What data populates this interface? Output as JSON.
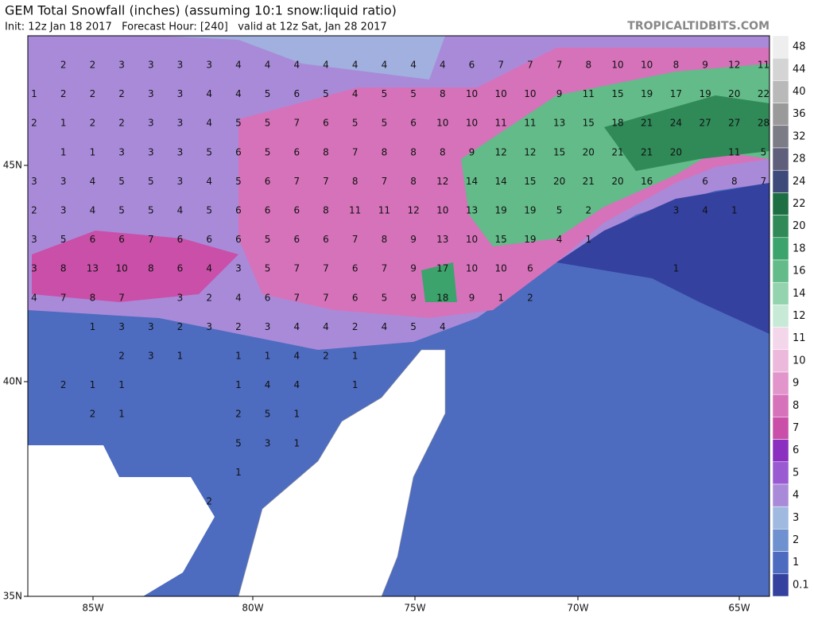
{
  "header": {
    "title": "GEM Total Snowfall (inches) (assuming 10:1 snow:liquid ratio)",
    "subtitle": "Init: 12z Jan 18 2017   Forecast Hour: [240]   valid at 12z Sat, Jan 28 2017",
    "watermark": "TROPICALTIDBITS.COM"
  },
  "map": {
    "labels": [
      [
        null,
        2,
        2,
        3,
        3,
        3,
        3,
        4,
        4,
        4,
        4,
        4,
        4,
        4,
        4,
        6,
        7,
        7,
        7,
        8,
        10,
        10,
        8,
        9,
        12,
        11
      ],
      [
        1,
        2,
        2,
        2,
        3,
        3,
        4,
        4,
        5,
        6,
        5,
        4,
        5,
        5,
        8,
        10,
        10,
        10,
        9,
        11,
        15,
        19,
        17,
        19,
        20,
        22
      ],
      [
        2,
        1,
        2,
        2,
        3,
        3,
        4,
        5,
        5,
        7,
        6,
        5,
        5,
        6,
        10,
        10,
        11,
        11,
        13,
        15,
        18,
        21,
        24,
        27,
        27,
        28
      ],
      [
        null,
        1,
        1,
        3,
        3,
        3,
        5,
        6,
        5,
        6,
        8,
        7,
        8,
        8,
        8,
        9,
        12,
        12,
        15,
        20,
        21,
        21,
        20,
        null,
        11,
        5
      ],
      [
        3,
        3,
        4,
        5,
        5,
        3,
        4,
        5,
        6,
        7,
        7,
        8,
        7,
        8,
        12,
        14,
        14,
        15,
        20,
        21,
        20,
        16,
        null,
        6,
        8,
        7
      ],
      [
        2,
        3,
        4,
        5,
        5,
        4,
        5,
        6,
        6,
        6,
        8,
        11,
        11,
        12,
        10,
        13,
        19,
        19,
        5,
        2,
        null,
        null,
        3,
        4,
        1,
        null
      ],
      [
        3,
        5,
        6,
        6,
        7,
        6,
        6,
        6,
        5,
        6,
        6,
        7,
        8,
        9,
        13,
        10,
        15,
        19,
        4,
        1,
        null,
        null,
        null,
        null,
        null,
        null
      ],
      [
        3,
        8,
        13,
        10,
        8,
        6,
        4,
        3,
        5,
        7,
        7,
        6,
        7,
        9,
        17,
        10,
        10,
        6,
        null,
        null,
        null,
        null,
        1,
        null,
        null,
        null
      ],
      [
        4,
        7,
        8,
        7,
        null,
        3,
        2,
        4,
        6,
        7,
        7,
        6,
        5,
        9,
        18,
        9,
        1,
        2,
        null,
        null,
        null,
        null,
        null,
        null,
        null,
        null
      ],
      [
        null,
        null,
        1,
        3,
        3,
        2,
        3,
        2,
        3,
        4,
        4,
        2,
        4,
        5,
        4,
        null,
        null,
        null,
        null,
        null,
        null,
        null,
        null,
        null,
        null,
        null
      ],
      [
        null,
        null,
        null,
        2,
        3,
        1,
        null,
        1,
        1,
        4,
        2,
        1,
        null,
        null,
        null,
        null,
        null,
        null,
        null,
        null,
        null,
        null,
        null,
        null,
        null,
        null
      ],
      [
        null,
        2,
        1,
        1,
        null,
        null,
        null,
        1,
        4,
        4,
        null,
        1,
        null,
        null,
        null,
        null,
        null,
        null,
        null,
        null,
        null,
        null,
        null,
        null,
        null,
        null
      ],
      [
        null,
        null,
        2,
        1,
        null,
        null,
        null,
        2,
        5,
        1,
        null,
        null,
        null,
        null,
        null,
        null,
        null,
        null,
        null,
        null,
        null,
        null,
        null,
        null,
        null,
        null
      ],
      [
        null,
        null,
        null,
        null,
        null,
        null,
        null,
        5,
        3,
        1,
        null,
        null,
        null,
        null,
        null,
        null,
        null,
        null,
        null,
        null,
        null,
        null,
        null,
        null,
        null,
        null
      ],
      [
        null,
        null,
        null,
        null,
        null,
        null,
        null,
        1,
        null,
        null,
        null,
        null,
        null,
        null,
        null,
        null,
        null,
        null,
        null,
        null,
        null,
        null,
        null,
        null,
        null,
        null
      ],
      [
        null,
        null,
        null,
        null,
        null,
        null,
        2,
        null,
        null,
        null,
        null,
        null,
        null,
        null,
        null,
        null,
        null,
        null,
        null,
        null,
        null,
        null,
        null,
        null,
        null,
        null
      ]
    ]
  },
  "axes": {
    "lat": [
      "45N",
      "40N",
      "35N"
    ],
    "lon": [
      "85W",
      "80W",
      "75W",
      "70W",
      "65W"
    ]
  },
  "colorbar": {
    "levels": [
      {
        "value": 48,
        "color": "#eeeeee"
      },
      {
        "value": 44,
        "color": "#d4d4d4"
      },
      {
        "value": 40,
        "color": "#b9b9b9"
      },
      {
        "value": 36,
        "color": "#9a9a9a"
      },
      {
        "value": 32,
        "color": "#7c7c86"
      },
      {
        "value": 28,
        "color": "#5f5f7c"
      },
      {
        "value": 24,
        "color": "#3e4a7a"
      },
      {
        "value": 22,
        "color": "#1e6e44"
      },
      {
        "value": 20,
        "color": "#2f8a58"
      },
      {
        "value": 18,
        "color": "#3da36c"
      },
      {
        "value": 16,
        "color": "#62bb88"
      },
      {
        "value": 14,
        "color": "#93d3ad"
      },
      {
        "value": 12,
        "color": "#c6ead6"
      },
      {
        "value": 11,
        "color": "#f4d6ea"
      },
      {
        "value": 10,
        "color": "#ecb8dc"
      },
      {
        "value": 9,
        "color": "#e195cb"
      },
      {
        "value": 8,
        "color": "#d672ba"
      },
      {
        "value": 7,
        "color": "#c94fa8"
      },
      {
        "value": 6,
        "color": "#8a2fc0"
      },
      {
        "value": 5,
        "color": "#9a5bd2"
      },
      {
        "value": 4,
        "color": "#a98ad9"
      },
      {
        "value": 3,
        "color": "#9fb9df"
      },
      {
        "value": 2,
        "color": "#6f91cf"
      },
      {
        "value": 1,
        "color": "#4d6cc0"
      },
      {
        "value": 0.1,
        "color": "#34419f"
      }
    ]
  }
}
